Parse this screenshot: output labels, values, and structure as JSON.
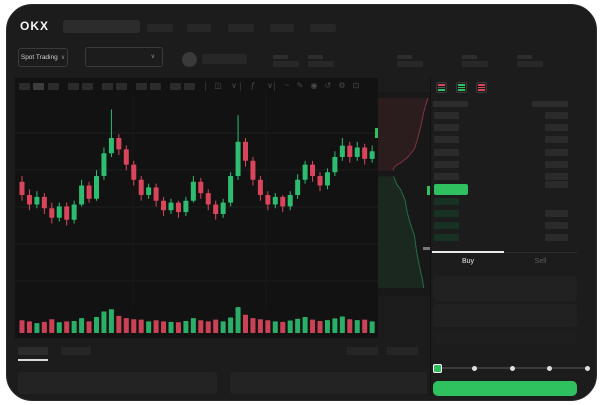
{
  "app": {
    "name": "OKX",
    "view": "Spot Trading dashboard"
  },
  "colors": {
    "accent_green": "#2fc060",
    "candle_up": "#2ebd70",
    "candle_down": "#d9465c",
    "window_bg": "#1c1c1c",
    "chart_bg": "#121212",
    "depth_bg": "#181818",
    "skeleton": "#2c2c2c",
    "bid_row_green": "#173222",
    "grid": "#1e1e1e"
  },
  "header": {
    "logo": "OKX",
    "nav_placeholder_count": 5
  },
  "market_bar": {
    "market_selector_label": "Spot Trading",
    "stat_pair_count": 5
  },
  "toolbar": {
    "interval_placeholder_count": 11,
    "active_interval_index": 1,
    "icons": [
      "candles-icon",
      "chevron-down-icon",
      "indicators-icon",
      "chevron-down-icon",
      "line-style-icon",
      "draw-icon",
      "camera-icon",
      "undo-icon",
      "settings-icon",
      "fullscreen-icon"
    ]
  },
  "chart_data": {
    "type": "candlestick",
    "title": "",
    "xlabel": "",
    "ylabel": "",
    "axis_labels_visible": false,
    "scale_note": "no numeric axes shown; values are relative 0-100 of chart height",
    "grid": true,
    "candles": [
      [
        57,
        60,
        47,
        50
      ],
      [
        50,
        53,
        42,
        45
      ],
      [
        45,
        52,
        43,
        49
      ],
      [
        49,
        51,
        40,
        43
      ],
      [
        43,
        46,
        35,
        38
      ],
      [
        38,
        46,
        36,
        44
      ],
      [
        44,
        46,
        34,
        37
      ],
      [
        37,
        47,
        35,
        45
      ],
      [
        45,
        58,
        44,
        55
      ],
      [
        55,
        57,
        46,
        48
      ],
      [
        48,
        63,
        47,
        60
      ],
      [
        60,
        75,
        58,
        72
      ],
      [
        72,
        95,
        70,
        80
      ],
      [
        80,
        82,
        71,
        74
      ],
      [
        74,
        76,
        63,
        66
      ],
      [
        66,
        68,
        55,
        58
      ],
      [
        58,
        60,
        47,
        50
      ],
      [
        50,
        56,
        48,
        54
      ],
      [
        54,
        56,
        44,
        47
      ],
      [
        47,
        49,
        39,
        42
      ],
      [
        42,
        48,
        40,
        46
      ],
      [
        46,
        47,
        38,
        41
      ],
      [
        41,
        49,
        39,
        47
      ],
      [
        47,
        60,
        46,
        57
      ],
      [
        57,
        59,
        48,
        51
      ],
      [
        51,
        53,
        42,
        45
      ],
      [
        45,
        47,
        37,
        40
      ],
      [
        40,
        48,
        38,
        46
      ],
      [
        46,
        62,
        44,
        60
      ],
      [
        60,
        92,
        58,
        78
      ],
      [
        78,
        80,
        65,
        68
      ],
      [
        68,
        70,
        55,
        58
      ],
      [
        58,
        60,
        47,
        50
      ],
      [
        50,
        52,
        42,
        45
      ],
      [
        45,
        51,
        43,
        49
      ],
      [
        49,
        50,
        41,
        44
      ],
      [
        44,
        52,
        42,
        50
      ],
      [
        50,
        61,
        48,
        58
      ],
      [
        58,
        68,
        56,
        66
      ],
      [
        66,
        68,
        57,
        60
      ],
      [
        60,
        62,
        52,
        55
      ],
      [
        55,
        64,
        53,
        62
      ],
      [
        62,
        73,
        60,
        70
      ],
      [
        70,
        80,
        68,
        76
      ],
      [
        76,
        78,
        67,
        70
      ],
      [
        70,
        78,
        68,
        75
      ],
      [
        75,
        77,
        66,
        69
      ],
      [
        69,
        76,
        67,
        73
      ]
    ],
    "volume": [
      35,
      30,
      22,
      28,
      40,
      26,
      30,
      32,
      45,
      30,
      50,
      75,
      85,
      55,
      45,
      40,
      38,
      30,
      35,
      30,
      28,
      26,
      32,
      45,
      35,
      30,
      38,
      30,
      48,
      95,
      60,
      45,
      40,
      35,
      30,
      28,
      34,
      42,
      50,
      38,
      32,
      36,
      44,
      52,
      40,
      36,
      38,
      30
    ],
    "depth": {
      "asks": [
        [
          0.96,
          0.01
        ],
        [
          0.88,
          0.08
        ],
        [
          0.82,
          0.16
        ],
        [
          0.76,
          0.22
        ],
        [
          0.7,
          0.27
        ],
        [
          0.58,
          0.31
        ],
        [
          0.44,
          0.34
        ],
        [
          0.32,
          0.36
        ],
        [
          0.29,
          0.38
        ]
      ],
      "bids": [
        [
          0.3,
          0.41
        ],
        [
          0.36,
          0.45
        ],
        [
          0.44,
          0.48
        ],
        [
          0.52,
          0.53
        ],
        [
          0.56,
          0.59
        ],
        [
          0.62,
          0.65
        ],
        [
          0.7,
          0.71
        ],
        [
          0.74,
          0.79
        ],
        [
          0.79,
          0.86
        ],
        [
          0.85,
          0.93
        ],
        [
          0.88,
          0.98
        ]
      ]
    }
  },
  "orderbook": {
    "layout_toggles": [
      "orderbook-all-icon",
      "orderbook-bids-icon",
      "orderbook-asks-icon"
    ],
    "ask_row_count": 6,
    "bid_row_count": 4,
    "has_price_highlight": true
  },
  "trade_panel": {
    "buy_label": "Buy",
    "sell_label": "Sell",
    "active_tab": "Buy",
    "input_field_count": 3,
    "slider_stop_count": 5,
    "slider_active_stop": 0
  },
  "footer": {
    "tab_count": 2,
    "active_tab_index": 0,
    "action_button_count": 2,
    "panel_count": 2
  }
}
